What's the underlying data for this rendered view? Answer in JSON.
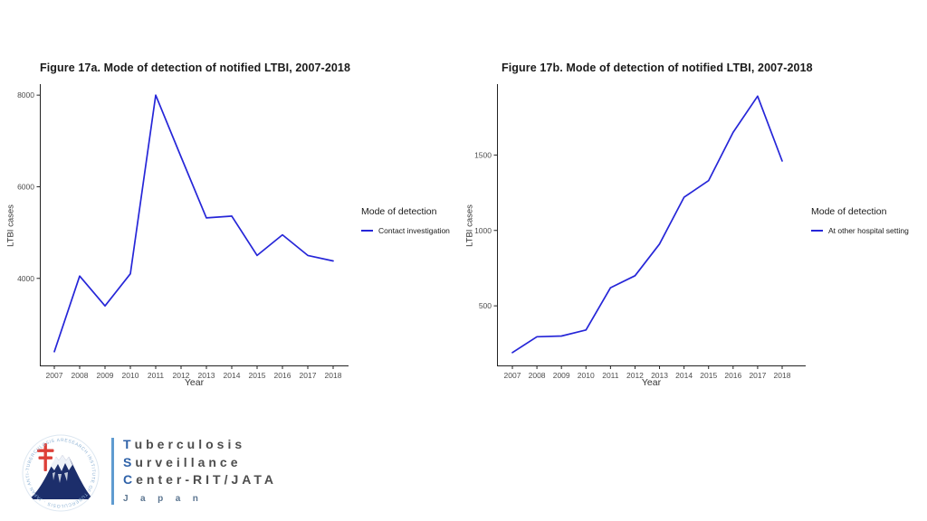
{
  "chart_data": [
    {
      "type": "line",
      "title": "Figure 17a. Mode of detection of notified LTBI, 2007-2018",
      "xlabel": "Year",
      "ylabel": "LTBI cases",
      "legend_title": "Mode of detection",
      "legend_position": "right",
      "grid": false,
      "line_color": "#2626d8",
      "years": [
        2007,
        2008,
        2009,
        2010,
        2011,
        2012,
        2013,
        2014,
        2015,
        2016,
        2017,
        2018
      ],
      "series": [
        {
          "name": "Contact investigation",
          "values": [
            2400,
            4050,
            3400,
            4100,
            8000,
            6650,
            5320,
            5360,
            4500,
            4950,
            4500,
            4380
          ]
        }
      ],
      "yticks": [
        4000,
        6000,
        8000
      ],
      "ylim": [
        2100,
        8240
      ]
    },
    {
      "type": "line",
      "title": "Figure 17b. Mode of detection of notified LTBI, 2007-2018",
      "xlabel": "Year",
      "ylabel": "LTBI cases",
      "legend_title": "Mode of detection",
      "legend_position": "right",
      "grid": false,
      "line_color": "#2626d8",
      "years": [
        2007,
        2008,
        2009,
        2010,
        2011,
        2012,
        2013,
        2014,
        2015,
        2016,
        2017,
        2018
      ],
      "series": [
        {
          "name": "At other hospital setting",
          "values": [
            190,
            295,
            300,
            340,
            620,
            700,
            910,
            1220,
            1330,
            1650,
            1890,
            1460
          ]
        }
      ],
      "yticks": [
        500,
        1000,
        1500
      ],
      "ylim": [
        105,
        1970
      ]
    }
  ],
  "logo": {
    "org_lines": [
      {
        "initial": "T",
        "rest": "uberculosis"
      },
      {
        "initial": "S",
        "rest": "urveillance"
      },
      {
        "initial": "C",
        "rest": "enter-RIT/JATA"
      }
    ],
    "country": "Japan",
    "ring_text": "RESEARCH INSTITUTE OF TUBERCULOSIS · JAPAN ANTI-TUBERCULOSIS ASSOCIATION ·",
    "colors": {
      "initial_blue": "#2f62a8",
      "body_text": "#4d4d4d",
      "separator_blue": "#5f9bd0",
      "fuji_navy": "#1c2e6b",
      "cross_red": "#dd4039",
      "ring_blue": "#8fb3d5"
    }
  }
}
